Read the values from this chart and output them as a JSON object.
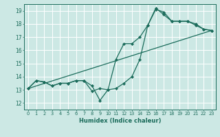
{
  "xlabel": "Humidex (Indice chaleur)",
  "xlim": [
    -0.5,
    23.5
  ],
  "ylim": [
    11.5,
    19.5
  ],
  "xticks": [
    0,
    1,
    2,
    3,
    4,
    5,
    6,
    7,
    8,
    9,
    10,
    11,
    12,
    13,
    14,
    15,
    16,
    17,
    18,
    19,
    20,
    21,
    22,
    23
  ],
  "yticks": [
    12,
    13,
    14,
    15,
    16,
    17,
    18,
    19
  ],
  "bg_color": "#cce8e4",
  "line_color": "#1a6b5a",
  "line1": {
    "x": [
      0,
      1,
      2,
      3,
      4,
      5,
      6,
      7,
      8,
      9,
      10,
      11,
      12,
      13,
      14,
      15,
      16,
      17,
      18,
      19,
      20,
      21,
      22,
      23
    ],
    "y": [
      13.1,
      13.7,
      13.6,
      13.3,
      13.5,
      13.5,
      13.7,
      13.7,
      13.3,
      12.2,
      13.0,
      13.1,
      13.5,
      14.0,
      15.3,
      17.9,
      19.2,
      18.7,
      18.2,
      18.2,
      18.2,
      17.9,
      17.6,
      17.5
    ]
  },
  "line2": {
    "x": [
      0,
      1,
      2,
      3,
      4,
      5,
      6,
      7,
      8,
      9,
      10,
      11,
      12,
      13,
      14,
      15,
      16,
      17,
      18,
      19,
      20,
      21,
      22,
      23
    ],
    "y": [
      13.1,
      13.7,
      13.6,
      13.3,
      13.5,
      13.5,
      13.7,
      13.7,
      12.9,
      13.1,
      13.0,
      15.3,
      16.5,
      16.5,
      17.0,
      17.9,
      19.1,
      18.9,
      18.2,
      18.2,
      18.2,
      18.0,
      17.6,
      17.5
    ]
  },
  "line3": {
    "x": [
      0,
      23
    ],
    "y": [
      13.1,
      17.5
    ]
  }
}
